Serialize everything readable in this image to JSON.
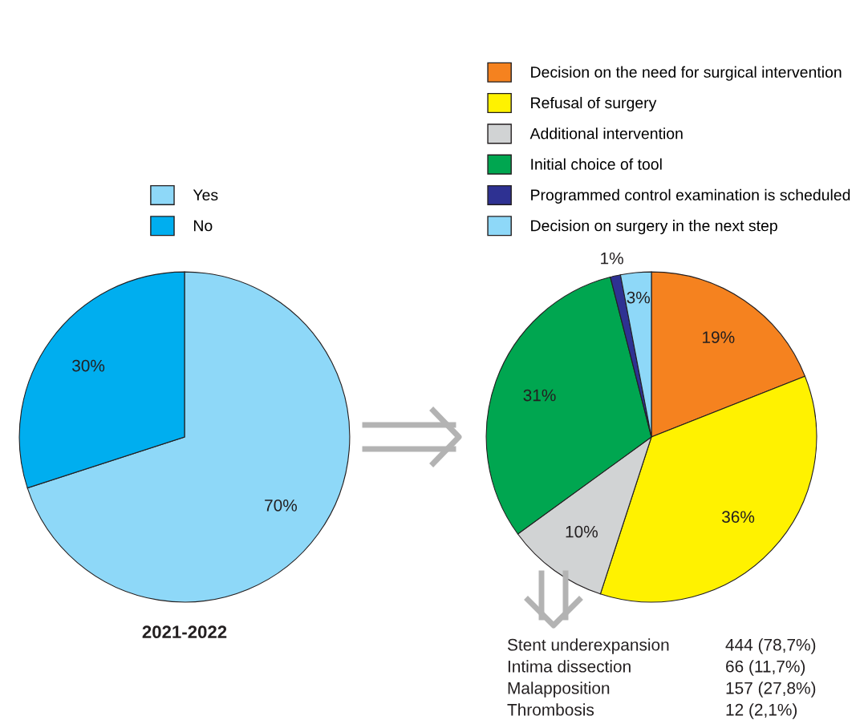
{
  "chart_data": [
    {
      "type": "pie",
      "title": "2021-2022",
      "categories": [
        "Yes",
        "No"
      ],
      "values": [
        70,
        30
      ],
      "colors": [
        "#8ed8f8",
        "#00aeef"
      ],
      "value_labels": [
        "70%",
        "30%"
      ],
      "legend": "top"
    },
    {
      "type": "pie",
      "categories": [
        "Decision on the need for surgical intervention",
        "Refusal of surgery",
        "Additional intervention",
        "Initial choice of tool",
        "Programmed control examination is scheduled",
        "Decision on surgery in the next step"
      ],
      "values": [
        19,
        36,
        10,
        31,
        1,
        3
      ],
      "colors": [
        "#f5821f",
        "#fff200",
        "#d1d3d4",
        "#00a650",
        "#2e3192",
        "#8ed8f8"
      ],
      "value_labels": [
        "19%",
        "36%",
        "10%",
        "31%",
        "1%",
        "3%"
      ],
      "legend": "top right",
      "annotations": [
        "Stent underexpansion",
        "444 (78,7%)",
        "Intima dissection",
        "66 (11,7%)",
        "Malapposition",
        "157 (27,8%)",
        "Thrombosis",
        "12 (2,1%)"
      ]
    }
  ]
}
